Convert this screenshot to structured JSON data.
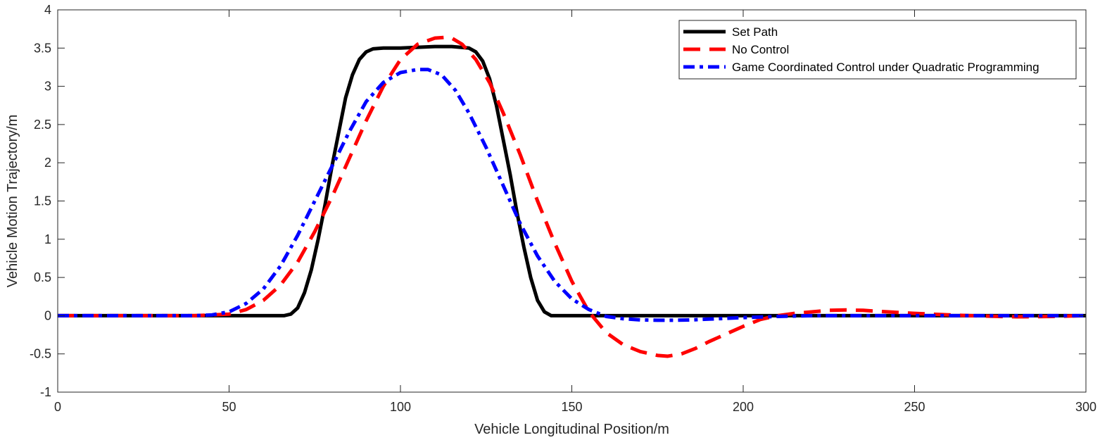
{
  "chart_data": {
    "type": "line",
    "xlabel": "Vehicle Longitudinal Position/m",
    "ylabel": "Vehicle Motion Trajectory/m",
    "xlim": [
      0,
      300
    ],
    "ylim": [
      -1,
      4
    ],
    "xticks": [
      "0",
      "50",
      "100",
      "150",
      "200",
      "250",
      "300"
    ],
    "yticks": [
      "-1",
      "-0.5",
      "0",
      "0.5",
      "1",
      "1.5",
      "2",
      "2.5",
      "3",
      "3.5",
      "4"
    ],
    "grid": false,
    "legend_position": "top-right",
    "series": [
      {
        "name": "Set Path",
        "color": "#000000",
        "dash": "solid",
        "x": [
          0,
          60,
          66,
          68,
          70,
          72,
          74,
          76,
          78,
          80,
          82,
          84,
          86,
          88,
          90,
          92,
          95,
          100,
          110,
          115,
          120,
          122,
          124,
          126,
          128,
          130,
          132,
          134,
          136,
          138,
          140,
          142,
          144,
          146,
          150,
          200,
          250,
          300
        ],
        "y": [
          0,
          0,
          0,
          0.02,
          0.1,
          0.3,
          0.6,
          1.0,
          1.45,
          1.95,
          2.4,
          2.85,
          3.15,
          3.35,
          3.45,
          3.49,
          3.5,
          3.5,
          3.52,
          3.52,
          3.5,
          3.45,
          3.33,
          3.1,
          2.75,
          2.3,
          1.85,
          1.35,
          0.9,
          0.5,
          0.2,
          0.05,
          0,
          0,
          0,
          0,
          0,
          0
        ]
      },
      {
        "name": "No Control",
        "color": "#ff0000",
        "dash": "dashed",
        "x": [
          0,
          40,
          50,
          55,
          60,
          65,
          70,
          75,
          80,
          85,
          90,
          95,
          100,
          105,
          110,
          113,
          115,
          118,
          122,
          126,
          130,
          135,
          140,
          145,
          150,
          155,
          160,
          165,
          170,
          175,
          178,
          182,
          186,
          190,
          195,
          200,
          205,
          210,
          215,
          220,
          225,
          230,
          235,
          240,
          250,
          260,
          270,
          280,
          290,
          300
        ],
        "y": [
          0,
          0,
          0.02,
          0.08,
          0.2,
          0.4,
          0.7,
          1.1,
          1.55,
          2.05,
          2.55,
          3.0,
          3.35,
          3.55,
          3.63,
          3.64,
          3.63,
          3.55,
          3.35,
          3.05,
          2.65,
          2.1,
          1.5,
          0.95,
          0.45,
          0.05,
          -0.22,
          -0.38,
          -0.47,
          -0.52,
          -0.53,
          -0.5,
          -0.43,
          -0.34,
          -0.24,
          -0.14,
          -0.05,
          0.0,
          0.03,
          0.05,
          0.07,
          0.075,
          0.07,
          0.055,
          0.03,
          0.01,
          -0.005,
          -0.015,
          -0.01,
          0
        ]
      },
      {
        "name": "Game Coordinated Control under Quadratic Programming",
        "color": "#0000ff",
        "dash": "dashdot",
        "x": [
          0,
          40,
          45,
          50,
          55,
          60,
          65,
          70,
          75,
          80,
          85,
          90,
          95,
          100,
          105,
          108,
          112,
          116,
          120,
          125,
          130,
          135,
          140,
          145,
          150,
          155,
          160,
          165,
          170,
          175,
          180,
          185,
          190,
          200,
          210,
          220,
          250,
          300
        ],
        "y": [
          0,
          0,
          0.01,
          0.05,
          0.16,
          0.35,
          0.65,
          1.05,
          1.5,
          1.95,
          2.4,
          2.8,
          3.05,
          3.18,
          3.22,
          3.22,
          3.15,
          2.95,
          2.65,
          2.2,
          1.7,
          1.2,
          0.78,
          0.45,
          0.22,
          0.08,
          -0.01,
          -0.04,
          -0.055,
          -0.06,
          -0.06,
          -0.055,
          -0.045,
          -0.025,
          -0.01,
          0,
          0,
          0
        ]
      }
    ]
  }
}
